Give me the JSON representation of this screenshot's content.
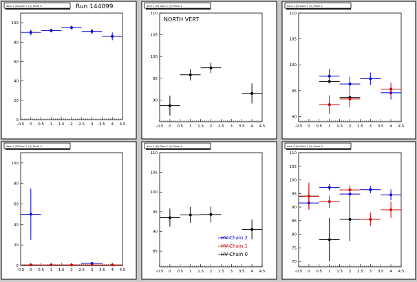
{
  "run_label": "Run 144099",
  "chart_data": [
    {
      "type": "scatter",
      "title": "dam 1 (N) Dam 1 (V) Panel 0",
      "annotation": "",
      "xlim": [
        -0.5,
        4.5
      ],
      "ylim": [
        0,
        110
      ],
      "x_ticks": [
        "-0.5",
        "0",
        "0.5",
        "1",
        "1.5",
        "2",
        "2.5",
        "3",
        "3.5",
        "4",
        "4.5"
      ],
      "y_ticks": [
        "0",
        "20",
        "40",
        "60",
        "80",
        "100"
      ],
      "series": [
        {
          "color": "#0000cc",
          "points": [
            {
              "x": 0,
              "y": 90,
              "ex": 0.5,
              "ey": 3
            },
            {
              "x": 1,
              "y": 92,
              "ex": 0.5,
              "ey": 2
            },
            {
              "x": 2,
              "y": 95,
              "ex": 0.5,
              "ey": 2
            },
            {
              "x": 3,
              "y": 91,
              "ex": 0.5,
              "ey": 3
            },
            {
              "x": 4,
              "y": 86,
              "ex": 0.5,
              "ey": 4
            }
          ]
        }
      ]
    },
    {
      "type": "scatter",
      "title": "dam 1 (N) Dam 1 (V) Panel 1",
      "annotation": "NORTH VERT",
      "xlim": [
        -0.5,
        4.5
      ],
      "ylim": [
        85,
        110
      ],
      "x_ticks": [
        "-0.5",
        "0",
        "0.5",
        "1",
        "1.5",
        "2",
        "2.5",
        "3",
        "3.5",
        "4",
        "4.5"
      ],
      "y_ticks": [
        "90",
        "95",
        "100",
        "105",
        "110"
      ],
      "series": [
        {
          "color": "#000000",
          "points": [
            {
              "x": 0,
              "y": 88.7,
              "ex": 0.5,
              "ey": 2.3
            },
            {
              "x": 1,
              "y": 95.8,
              "ex": 0.5,
              "ey": 1.3
            },
            {
              "x": 2,
              "y": 97.4,
              "ex": 0.5,
              "ey": 1.2
            },
            {
              "x": 4,
              "y": 91.5,
              "ex": 0.5,
              "ey": 2.3
            }
          ]
        }
      ]
    },
    {
      "type": "scatter",
      "title": "dam 1 (N) Dam 1 (V) Panel 2",
      "annotation": "",
      "xlim": [
        -0.5,
        4.5
      ],
      "ylim": [
        89,
        110
      ],
      "x_ticks": [
        "-0.5",
        "0",
        "0.5",
        "1",
        "1.5",
        "2",
        "2.5",
        "3",
        "3.5",
        "4",
        "4.5"
      ],
      "y_ticks": [
        "90",
        "95",
        "100",
        "105",
        "110"
      ],
      "series": [
        {
          "color": "#000000",
          "points": [
            {
              "x": 1,
              "y": 96.8,
              "ex": 0.5,
              "ey": 0
            },
            {
              "x": 2,
              "y": 93.7,
              "ex": 0.5,
              "ey": 0
            }
          ]
        },
        {
          "color": "#0000cc",
          "points": [
            {
              "x": 1,
              "y": 97.8,
              "ex": 0.5,
              "ey": 1.4
            },
            {
              "x": 2,
              "y": 96.3,
              "ex": 0.5,
              "ey": 1.4
            },
            {
              "x": 3,
              "y": 97.3,
              "ex": 0.5,
              "ey": 1.2
            },
            {
              "x": 4,
              "y": 94.6,
              "ex": 0.5,
              "ey": 1.3
            }
          ]
        },
        {
          "color": "#cc0000",
          "points": [
            {
              "x": 1,
              "y": 92.3,
              "ex": 0.5,
              "ey": 1.8
            },
            {
              "x": 2,
              "y": 93.4,
              "ex": 0.5,
              "ey": 1.6
            },
            {
              "x": 4,
              "y": 95.3,
              "ex": 0.5,
              "ey": 1.3
            }
          ]
        }
      ]
    },
    {
      "type": "scatter",
      "title": "dam 1 (N) Dam 1 (V) Panel 3",
      "annotation": "",
      "xlim": [
        -0.5,
        4.5
      ],
      "ylim": [
        0,
        110
      ],
      "x_ticks": [
        "-0.5",
        "0",
        "0.5",
        "1",
        "1.5",
        "2",
        "2.5",
        "3",
        "3.5",
        "4",
        "4.5"
      ],
      "y_ticks": [
        "0",
        "20",
        "40",
        "60",
        "80",
        "100"
      ],
      "series": [
        {
          "color": "#0000cc",
          "points": [
            {
              "x": 0,
              "y": 50,
              "ex": 0.5,
              "ey": 25
            },
            {
              "x": 3,
              "y": 2,
              "ex": 0.5,
              "ey": 1
            }
          ]
        },
        {
          "color": "#cc0000",
          "points": [
            {
              "x": 0,
              "y": 0.5,
              "ex": 0.5,
              "ey": 0
            },
            {
              "x": 1,
              "y": 0.5,
              "ex": 0.5,
              "ey": 0
            },
            {
              "x": 2,
              "y": 0.5,
              "ex": 0.5,
              "ey": 0
            },
            {
              "x": 3,
              "y": 0.5,
              "ex": 0.5,
              "ey": 0
            },
            {
              "x": 4,
              "y": 0.5,
              "ex": 0.5,
              "ey": 0
            }
          ]
        }
      ]
    },
    {
      "type": "scatter",
      "title": "dam 1 (N) Dam 1 (V) Panel 4",
      "annotation": "",
      "xlim": [
        -0.5,
        4.5
      ],
      "ylim": [
        81,
        110
      ],
      "x_ticks": [
        "-0.5",
        "0",
        "0.5",
        "1",
        "1.5",
        "2",
        "2.5",
        "3",
        "3.5",
        "4",
        "4.5"
      ],
      "y_ticks": [
        "85",
        "90",
        "95",
        "100",
        "105",
        "110"
      ],
      "legend": [
        {
          "label": "HV Chain 2",
          "color": "#0000cc"
        },
        {
          "label": "HV Chain 1",
          "color": "#cc0000"
        },
        {
          "label": "HV Chain 0",
          "color": "#000000"
        }
      ],
      "series": [
        {
          "color": "#000000",
          "points": [
            {
              "x": 0,
              "y": 93.5,
              "ex": 0.5,
              "ey": 2.3
            },
            {
              "x": 1,
              "y": 94.2,
              "ex": 0.5,
              "ey": 2.0
            },
            {
              "x": 2,
              "y": 94.3,
              "ex": 0.5,
              "ey": 2.0
            },
            {
              "x": 4,
              "y": 90.5,
              "ex": 0.5,
              "ey": 2.5
            }
          ]
        }
      ]
    },
    {
      "type": "scatter",
      "title": "dam 1 (N) Dam 1 (V) Panel 5",
      "annotation": "",
      "xlim": [
        -0.5,
        4.5
      ],
      "ylim": [
        68,
        110
      ],
      "x_ticks": [
        "-0.5",
        "0",
        "0.5",
        "1",
        "1.5",
        "2",
        "2.5",
        "3",
        "3.5",
        "4",
        "4.5"
      ],
      "y_ticks": [
        "70",
        "75",
        "80",
        "85",
        "90",
        "95",
        "100",
        "105",
        "110"
      ],
      "series": [
        {
          "color": "#000000",
          "points": [
            {
              "x": 0,
              "y": 94,
              "ex": 0.5,
              "ey": 4
            },
            {
              "x": 1,
              "y": 78,
              "ex": 0.5,
              "ey": 8
            },
            {
              "x": 2,
              "y": 85.5,
              "ex": 0.5,
              "ey": 8
            }
          ]
        },
        {
          "color": "#0000cc",
          "points": [
            {
              "x": 0,
              "y": 91.5,
              "ex": 0.5,
              "ey": 2
            },
            {
              "x": 1,
              "y": 97.2,
              "ex": 0.5,
              "ey": 1.2
            },
            {
              "x": 2,
              "y": 94.8,
              "ex": 0.5,
              "ey": 2.5
            },
            {
              "x": 3,
              "y": 96.4,
              "ex": 0.5,
              "ey": 1.3
            },
            {
              "x": 4,
              "y": 94.5,
              "ex": 0.5,
              "ey": 2
            }
          ]
        },
        {
          "color": "#cc0000",
          "points": [
            {
              "x": 0,
              "y": 94,
              "ex": 0.5,
              "ey": 5
            },
            {
              "x": 1,
              "y": 92,
              "ex": 0.5,
              "ey": 2.2
            },
            {
              "x": 2,
              "y": 96.3,
              "ex": 0.5,
              "ey": 1.7
            },
            {
              "x": 3,
              "y": 85.5,
              "ex": 0.5,
              "ey": 2.5
            },
            {
              "x": 4,
              "y": 89,
              "ex": 0.5,
              "ey": 3
            }
          ]
        }
      ]
    }
  ]
}
